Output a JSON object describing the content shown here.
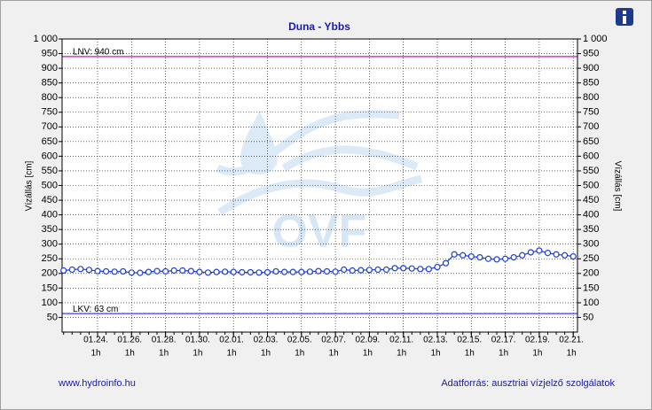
{
  "chart_data": {
    "type": "line",
    "title": "Duna - Ybbs",
    "y_label": "Vízállás [cm]",
    "categories": [
      null,
      null,
      null,
      null,
      "01.24.",
      null,
      null,
      null,
      "01.26.",
      null,
      null,
      null,
      "01.28.",
      null,
      null,
      null,
      "01.30.",
      null,
      null,
      null,
      "02.01.",
      null,
      null,
      null,
      "02.03.",
      null,
      null,
      null,
      "02.05.",
      null,
      null,
      null,
      "02.07.",
      null,
      null,
      null,
      "02.09.",
      null,
      null,
      null,
      "02.11.",
      null,
      null,
      null,
      "02.13.",
      null,
      null,
      null,
      "02.15.",
      null,
      null,
      null,
      "02.17.",
      null,
      null,
      null,
      "02.19.",
      null,
      null,
      null,
      "02.21."
    ],
    "x_time_label": "1h",
    "series": [
      {
        "color": "#1f3fcf",
        "values": [
          210,
          213,
          215,
          212,
          208,
          207,
          206,
          207,
          203,
          202,
          205,
          208,
          207,
          210,
          210,
          208,
          205,
          203,
          205,
          206,
          205,
          204,
          204,
          203,
          204,
          207,
          205,
          205,
          205,
          206,
          208,
          207,
          206,
          213,
          210,
          211,
          212,
          213,
          213,
          218,
          218,
          217,
          215,
          215,
          222,
          235,
          265,
          262,
          258,
          255,
          250,
          248,
          250,
          255,
          262,
          272,
          278,
          270,
          265,
          262,
          258
        ]
      }
    ],
    "ylim": [
      0,
      1000
    ],
    "yticks": [
      50,
      100,
      150,
      200,
      250,
      300,
      350,
      400,
      450,
      500,
      550,
      600,
      650,
      700,
      750,
      800,
      850,
      900,
      950,
      {
        "value": 1000,
        "label": "1 000"
      }
    ],
    "grid": true,
    "reference_lines": [
      {
        "label": "LNV: 940 cm",
        "value": 940,
        "color": "#d03cd0"
      },
      {
        "label": "LKV: 63 cm",
        "value": 63,
        "color": "#5a5aff"
      }
    ],
    "watermark": "OVF",
    "footer_left": "www.hydroinfo.hu",
    "footer_right": "Adatforrás: ausztriai vízjelző szolgálatok"
  }
}
